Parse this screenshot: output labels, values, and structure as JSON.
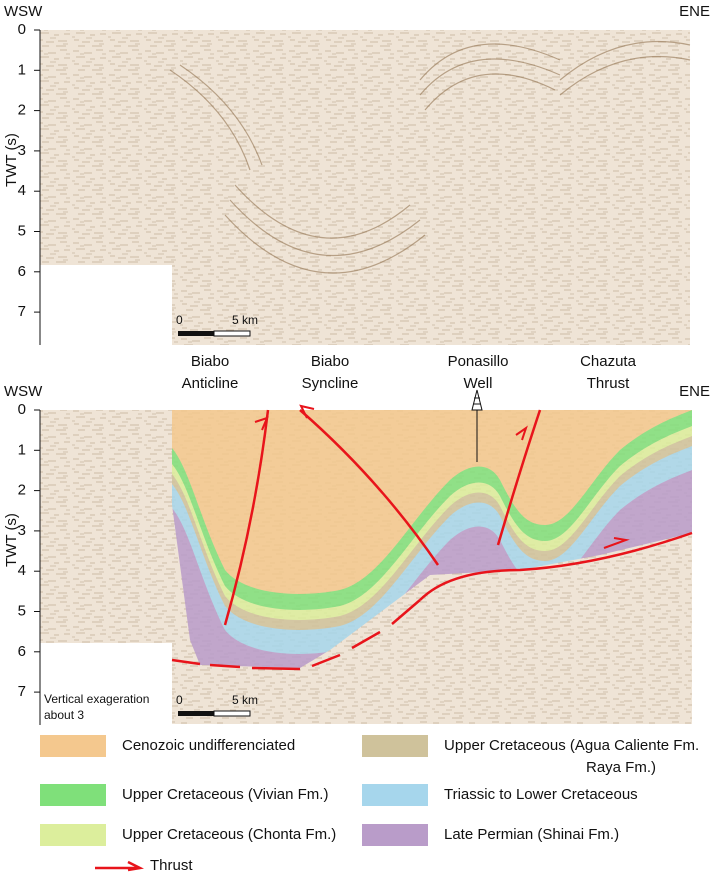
{
  "panel1": {
    "left": "WSW",
    "right": "ENE",
    "axis_label": "TWT (s)",
    "ticks": [
      0,
      1,
      2,
      3,
      4,
      5,
      6,
      7
    ],
    "scale": {
      "start": "0",
      "end": "5 km"
    }
  },
  "panel2": {
    "headers": [
      [
        "Biabo",
        "Anticline"
      ],
      [
        "Biabo",
        "Syncline"
      ],
      [
        "Ponasillo",
        "Well"
      ],
      [
        "Chazuta",
        "Thrust"
      ]
    ],
    "left": "WSW",
    "right": "ENE",
    "axis_label": "TWT (s)",
    "ticks": [
      0,
      1,
      2,
      3,
      4,
      5,
      6,
      7
    ],
    "note": [
      "Vertical exageration",
      "about 3"
    ],
    "scale": {
      "start": "0",
      "end": "5 km"
    }
  },
  "legend": [
    {
      "label": [
        "Cenozoic undifferenciated"
      ],
      "color": "#f4c88e"
    },
    {
      "label": [
        "Upper Cretaceous (Agua Caliente Fm.",
        "Raya Fm.)"
      ],
      "color": "#cfc29b"
    },
    {
      "label": [
        "Upper Cretaceous (Vivian Fm.)"
      ],
      "color": "#7fe07a"
    },
    {
      "label": [
        "Triassic to Lower Cretaceous"
      ],
      "color": "#a6d6ec"
    },
    {
      "label": [
        "Upper Cretaceous (Chonta Fm.)"
      ],
      "color": "#dcee9c"
    },
    {
      "label": [
        "Late Permian (Shinai Fm.)"
      ],
      "color": "#b99cc9"
    },
    {
      "label": [
        "Thrust"
      ],
      "color": "#e8141b"
    }
  ]
}
